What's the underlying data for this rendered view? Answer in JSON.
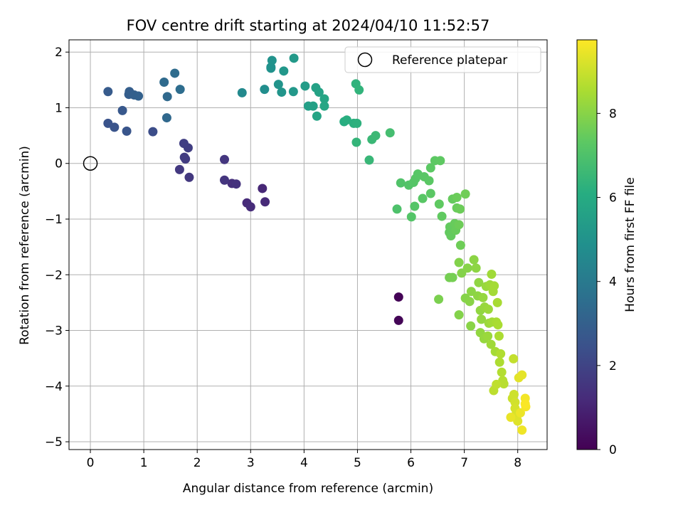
{
  "chart_data": {
    "type": "scatter",
    "title": "FOV centre drift starting at 2024/04/10 11:52:57",
    "xlabel": "Angular distance from reference (arcmin)",
    "ylabel": "Rotation from reference (arcmin)",
    "xlim": [
      -0.4,
      8.55
    ],
    "ylim": [
      -5.14,
      2.22
    ],
    "xticks": [
      0,
      1,
      2,
      3,
      4,
      5,
      6,
      7,
      8
    ],
    "yticks": [
      -5,
      -4,
      -3,
      -2,
      -1,
      0,
      1,
      2
    ],
    "grid": true,
    "legend": {
      "position": "top-right",
      "entries": [
        "Reference platepar"
      ]
    },
    "reference_point": {
      "x": 0,
      "y": 0
    },
    "colorbar": {
      "label": "Hours from first FF file",
      "colormap": "viridis",
      "range": [
        0,
        9.75
      ],
      "ticks": [
        0,
        2,
        4,
        6,
        8
      ]
    },
    "points": [
      {
        "x": 5.77,
        "y": -2.4,
        "h": 0.05
      },
      {
        "x": 5.77,
        "y": -2.82,
        "h": 0.1
      },
      {
        "x": 3.22,
        "y": -0.45,
        "h": 1.1
      },
      {
        "x": 3.27,
        "y": -0.69,
        "h": 1.15
      },
      {
        "x": 2.93,
        "y": -0.71,
        "h": 1.2
      },
      {
        "x": 3.0,
        "y": -0.78,
        "h": 1.25
      },
      {
        "x": 2.65,
        "y": -0.36,
        "h": 1.35
      },
      {
        "x": 2.73,
        "y": -0.37,
        "h": 1.4
      },
      {
        "x": 2.51,
        "y": -0.3,
        "h": 1.5
      },
      {
        "x": 2.51,
        "y": 0.07,
        "h": 1.55
      },
      {
        "x": 1.85,
        "y": -0.25,
        "h": 1.6
      },
      {
        "x": 1.67,
        "y": -0.11,
        "h": 1.65
      },
      {
        "x": 1.78,
        "y": 0.08,
        "h": 1.7
      },
      {
        "x": 1.76,
        "y": 0.11,
        "h": 1.75
      },
      {
        "x": 1.83,
        "y": 0.28,
        "h": 1.8
      },
      {
        "x": 1.75,
        "y": 0.36,
        "h": 1.85
      },
      {
        "x": 1.17,
        "y": 0.57,
        "h": 2.3
      },
      {
        "x": 0.33,
        "y": 0.72,
        "h": 2.5
      },
      {
        "x": 0.45,
        "y": 0.65,
        "h": 2.55
      },
      {
        "x": 0.68,
        "y": 0.58,
        "h": 2.6
      },
      {
        "x": 0.6,
        "y": 0.95,
        "h": 2.7
      },
      {
        "x": 0.33,
        "y": 1.29,
        "h": 2.8
      },
      {
        "x": 0.72,
        "y": 1.24,
        "h": 2.9
      },
      {
        "x": 0.73,
        "y": 1.29,
        "h": 2.95
      },
      {
        "x": 0.82,
        "y": 1.23,
        "h": 3.0
      },
      {
        "x": 0.9,
        "y": 1.21,
        "h": 3.05
      },
      {
        "x": 1.43,
        "y": 0.82,
        "h": 3.3
      },
      {
        "x": 1.44,
        "y": 1.2,
        "h": 3.35
      },
      {
        "x": 1.38,
        "y": 1.46,
        "h": 3.4
      },
      {
        "x": 1.58,
        "y": 1.62,
        "h": 3.45
      },
      {
        "x": 1.68,
        "y": 1.33,
        "h": 3.5
      },
      {
        "x": 2.84,
        "y": 1.27,
        "h": 4.6
      },
      {
        "x": 3.26,
        "y": 1.33,
        "h": 4.8
      },
      {
        "x": 3.38,
        "y": 1.73,
        "h": 4.9
      },
      {
        "x": 3.38,
        "y": 1.71,
        "h": 4.95
      },
      {
        "x": 3.4,
        "y": 1.85,
        "h": 5.0
      },
      {
        "x": 3.52,
        "y": 1.42,
        "h": 5.05
      },
      {
        "x": 3.58,
        "y": 1.28,
        "h": 5.1
      },
      {
        "x": 3.62,
        "y": 1.66,
        "h": 5.15
      },
      {
        "x": 3.8,
        "y": 1.29,
        "h": 5.2
      },
      {
        "x": 3.81,
        "y": 1.89,
        "h": 5.25
      },
      {
        "x": 4.02,
        "y": 1.39,
        "h": 5.4
      },
      {
        "x": 4.08,
        "y": 1.03,
        "h": 5.5
      },
      {
        "x": 4.17,
        "y": 1.03,
        "h": 5.55
      },
      {
        "x": 4.22,
        "y": 1.36,
        "h": 5.6
      },
      {
        "x": 4.28,
        "y": 1.28,
        "h": 5.65
      },
      {
        "x": 4.24,
        "y": 0.85,
        "h": 5.7
      },
      {
        "x": 4.38,
        "y": 1.16,
        "h": 5.75
      },
      {
        "x": 4.38,
        "y": 1.03,
        "h": 5.8
      },
      {
        "x": 4.75,
        "y": 0.75,
        "h": 6.1
      },
      {
        "x": 4.8,
        "y": 0.78,
        "h": 6.15
      },
      {
        "x": 4.93,
        "y": 0.72,
        "h": 6.2
      },
      {
        "x": 4.99,
        "y": 0.72,
        "h": 6.25
      },
      {
        "x": 4.97,
        "y": 1.43,
        "h": 6.3
      },
      {
        "x": 5.03,
        "y": 1.32,
        "h": 6.35
      },
      {
        "x": 4.98,
        "y": 0.38,
        "h": 6.4
      },
      {
        "x": 5.22,
        "y": 0.06,
        "h": 6.5
      },
      {
        "x": 5.27,
        "y": 0.43,
        "h": 6.55
      },
      {
        "x": 5.34,
        "y": 0.5,
        "h": 6.6
      },
      {
        "x": 5.61,
        "y": 0.55,
        "h": 6.8
      },
      {
        "x": 5.74,
        "y": -0.82,
        "h": 7.0
      },
      {
        "x": 5.81,
        "y": -0.35,
        "h": 7.05
      },
      {
        "x": 5.96,
        "y": -0.39,
        "h": 7.1
      },
      {
        "x": 6.01,
        "y": -0.96,
        "h": 7.12
      },
      {
        "x": 6.07,
        "y": -0.77,
        "h": 7.14
      },
      {
        "x": 6.05,
        "y": -0.34,
        "h": 7.16
      },
      {
        "x": 6.09,
        "y": -0.27,
        "h": 7.18
      },
      {
        "x": 6.13,
        "y": -0.19,
        "h": 7.2
      },
      {
        "x": 6.22,
        "y": -0.63,
        "h": 7.22
      },
      {
        "x": 6.25,
        "y": -0.24,
        "h": 7.24
      },
      {
        "x": 6.34,
        "y": -0.31,
        "h": 7.26
      },
      {
        "x": 6.37,
        "y": -0.54,
        "h": 7.28
      },
      {
        "x": 6.37,
        "y": -0.08,
        "h": 7.3
      },
      {
        "x": 6.45,
        "y": 0.05,
        "h": 7.32
      },
      {
        "x": 6.55,
        "y": 0.05,
        "h": 7.34
      },
      {
        "x": 6.53,
        "y": -0.73,
        "h": 7.36
      },
      {
        "x": 6.58,
        "y": -0.95,
        "h": 7.38
      },
      {
        "x": 6.72,
        "y": -1.24,
        "h": 7.4
      },
      {
        "x": 6.73,
        "y": -1.14,
        "h": 7.42
      },
      {
        "x": 6.75,
        "y": -1.3,
        "h": 7.44
      },
      {
        "x": 6.78,
        "y": -0.64,
        "h": 7.46
      },
      {
        "x": 6.82,
        "y": -1.08,
        "h": 7.48
      },
      {
        "x": 6.84,
        "y": -1.2,
        "h": 7.5
      },
      {
        "x": 6.86,
        "y": -0.8,
        "h": 7.52
      },
      {
        "x": 6.86,
        "y": -0.61,
        "h": 7.54
      },
      {
        "x": 6.92,
        "y": -0.82,
        "h": 7.56
      },
      {
        "x": 6.9,
        "y": -1.1,
        "h": 7.58
      },
      {
        "x": 6.93,
        "y": -1.47,
        "h": 7.6
      },
      {
        "x": 7.02,
        "y": -0.55,
        "h": 7.62
      },
      {
        "x": 6.72,
        "y": -2.05,
        "h": 7.7
      },
      {
        "x": 6.78,
        "y": -2.05,
        "h": 7.72
      },
      {
        "x": 6.52,
        "y": -2.44,
        "h": 7.8
      },
      {
        "x": 6.9,
        "y": -1.78,
        "h": 7.9
      },
      {
        "x": 6.9,
        "y": -2.72,
        "h": 7.92
      },
      {
        "x": 6.95,
        "y": -1.97,
        "h": 7.94
      },
      {
        "x": 7.02,
        "y": -2.42,
        "h": 7.96
      },
      {
        "x": 7.06,
        "y": -1.88,
        "h": 7.98
      },
      {
        "x": 7.1,
        "y": -2.48,
        "h": 8.0
      },
      {
        "x": 7.12,
        "y": -2.92,
        "h": 8.02
      },
      {
        "x": 7.13,
        "y": -2.3,
        "h": 8.04
      },
      {
        "x": 7.18,
        "y": -1.73,
        "h": 8.06
      },
      {
        "x": 7.22,
        "y": -1.88,
        "h": 8.08
      },
      {
        "x": 7.25,
        "y": -2.38,
        "h": 8.1
      },
      {
        "x": 7.27,
        "y": -2.14,
        "h": 8.12
      },
      {
        "x": 7.3,
        "y": -2.64,
        "h": 8.14
      },
      {
        "x": 7.3,
        "y": -3.04,
        "h": 8.16
      },
      {
        "x": 7.32,
        "y": -2.8,
        "h": 8.18
      },
      {
        "x": 7.35,
        "y": -2.41,
        "h": 8.2
      },
      {
        "x": 7.37,
        "y": -3.15,
        "h": 8.22
      },
      {
        "x": 7.38,
        "y": -2.58,
        "h": 8.24
      },
      {
        "x": 7.41,
        "y": -2.21,
        "h": 8.26
      },
      {
        "x": 7.44,
        "y": -3.1,
        "h": 8.28
      },
      {
        "x": 7.45,
        "y": -2.62,
        "h": 8.3
      },
      {
        "x": 7.46,
        "y": -2.87,
        "h": 8.32
      },
      {
        "x": 7.48,
        "y": -2.18,
        "h": 8.34
      },
      {
        "x": 7.5,
        "y": -3.25,
        "h": 8.36
      },
      {
        "x": 7.51,
        "y": -1.99,
        "h": 8.38
      },
      {
        "x": 7.52,
        "y": -2.85,
        "h": 8.4
      },
      {
        "x": 7.54,
        "y": -2.3,
        "h": 8.42
      },
      {
        "x": 7.56,
        "y": -2.2,
        "h": 8.44
      },
      {
        "x": 7.58,
        "y": -3.38,
        "h": 8.46
      },
      {
        "x": 7.6,
        "y": -2.85,
        "h": 8.48
      },
      {
        "x": 7.62,
        "y": -2.5,
        "h": 8.5
      },
      {
        "x": 7.63,
        "y": -2.9,
        "h": 8.52
      },
      {
        "x": 7.65,
        "y": -3.1,
        "h": 8.54
      },
      {
        "x": 7.66,
        "y": -3.57,
        "h": 8.58
      },
      {
        "x": 7.68,
        "y": -3.42,
        "h": 8.62
      },
      {
        "x": 7.7,
        "y": -3.75,
        "h": 8.66
      },
      {
        "x": 7.72,
        "y": -3.9,
        "h": 8.7
      },
      {
        "x": 7.74,
        "y": -3.96,
        "h": 8.74
      },
      {
        "x": 7.55,
        "y": -4.08,
        "h": 8.8
      },
      {
        "x": 7.6,
        "y": -3.97,
        "h": 8.84
      },
      {
        "x": 7.92,
        "y": -3.51,
        "h": 8.9
      },
      {
        "x": 7.9,
        "y": -4.22,
        "h": 9.0
      },
      {
        "x": 7.93,
        "y": -4.15,
        "h": 9.05
      },
      {
        "x": 7.95,
        "y": -4.29,
        "h": 9.1
      },
      {
        "x": 7.95,
        "y": -4.4,
        "h": 9.15
      },
      {
        "x": 7.97,
        "y": -4.5,
        "h": 9.2
      },
      {
        "x": 7.98,
        "y": -4.58,
        "h": 9.25
      },
      {
        "x": 8.0,
        "y": -4.63,
        "h": 9.3
      },
      {
        "x": 8.02,
        "y": -3.85,
        "h": 9.35
      },
      {
        "x": 8.08,
        "y": -3.8,
        "h": 9.4
      },
      {
        "x": 7.87,
        "y": -4.56,
        "h": 9.45
      },
      {
        "x": 8.05,
        "y": -4.48,
        "h": 9.5
      },
      {
        "x": 8.08,
        "y": -4.79,
        "h": 9.55
      },
      {
        "x": 8.14,
        "y": -4.22,
        "h": 9.6
      },
      {
        "x": 8.15,
        "y": -4.37,
        "h": 9.65
      },
      {
        "x": 8.14,
        "y": -4.32,
        "h": 9.7
      }
    ]
  }
}
